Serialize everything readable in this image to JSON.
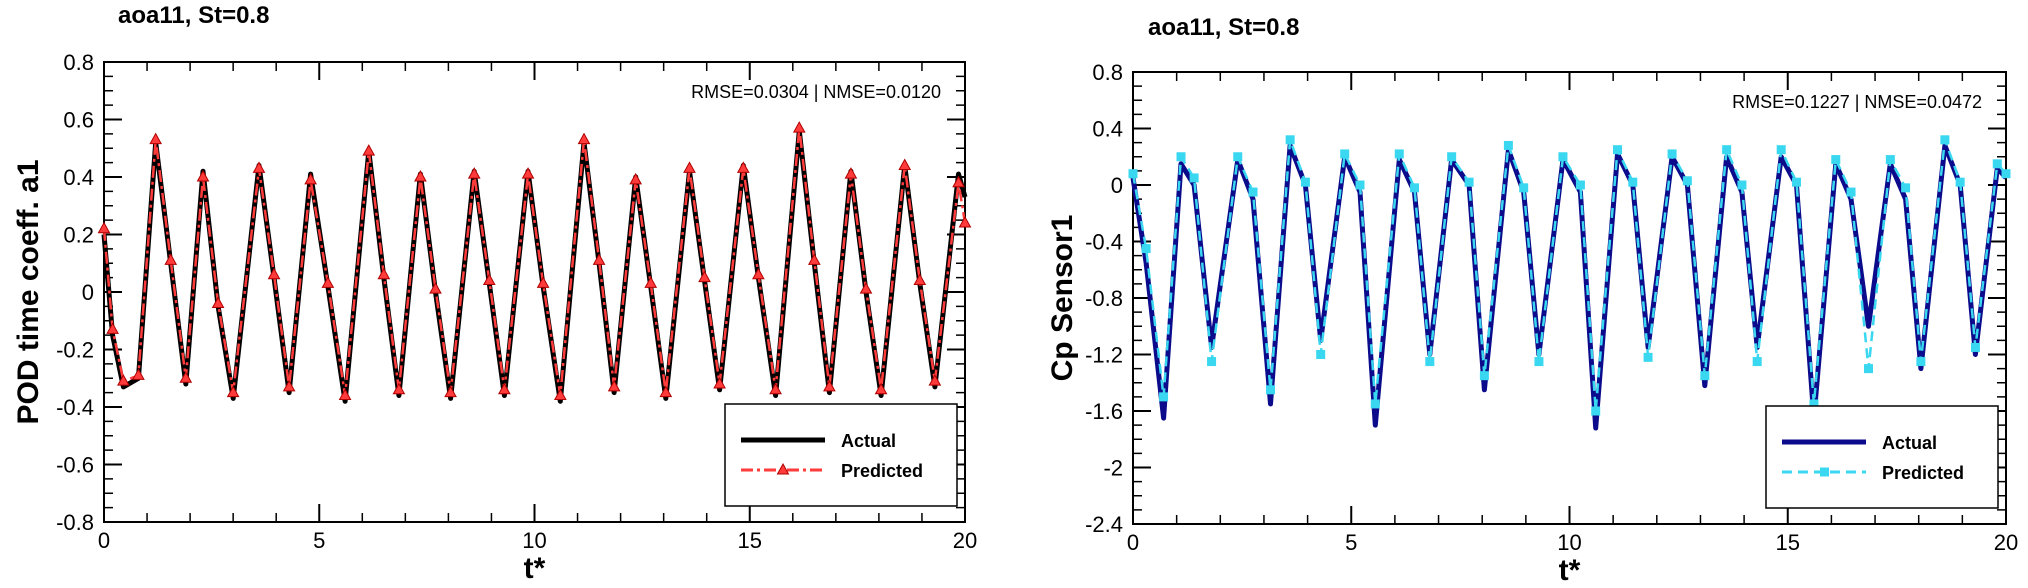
{
  "chart_data": [
    {
      "type": "line",
      "title": "aoa11, St=0.8",
      "xlabel": "t*",
      "ylabel": "POD time coeff. a1",
      "xlim": [
        0,
        20
      ],
      "ylim": [
        -0.8,
        0.8
      ],
      "xticks": [
        "0",
        "5",
        "10",
        "15",
        "20"
      ],
      "yticks": [
        "-0.8",
        "-0.6",
        "-0.4",
        "-0.2",
        "0",
        "0.2",
        "0.4",
        "0.6",
        "0.8"
      ],
      "annotation": "RMSE=0.0304 | NMSE=0.0120",
      "legend_position": "bottom-right",
      "series": [
        {
          "name": "Actual",
          "color": "#000000",
          "style": "solid",
          "x": [
            0,
            0.2,
            0.45,
            0.8,
            1.2,
            1.55,
            1.9,
            2.3,
            2.65,
            3.0,
            3.6,
            3.95,
            4.3,
            4.8,
            5.2,
            5.6,
            6.15,
            6.5,
            6.85,
            7.35,
            7.7,
            8.05,
            8.6,
            8.95,
            9.3,
            9.85,
            10.2,
            10.6,
            11.15,
            11.5,
            11.85,
            12.35,
            12.7,
            13.05,
            13.6,
            13.95,
            14.3,
            14.85,
            15.2,
            15.6,
            16.15,
            16.5,
            16.85,
            17.35,
            17.7,
            18.05,
            18.6,
            18.95,
            19.3,
            19.85,
            20
          ],
          "y": [
            0.2,
            -0.15,
            -0.33,
            -0.3,
            0.52,
            0.1,
            -0.32,
            0.42,
            -0.05,
            -0.37,
            0.44,
            0.05,
            -0.35,
            0.41,
            0.02,
            -0.38,
            0.49,
            0.05,
            -0.36,
            0.41,
            0.0,
            -0.37,
            0.42,
            0.03,
            -0.36,
            0.42,
            0.02,
            -0.38,
            0.52,
            0.1,
            -0.35,
            0.4,
            0.02,
            -0.37,
            0.42,
            0.04,
            -0.34,
            0.44,
            0.05,
            -0.36,
            0.56,
            0.1,
            -0.35,
            0.42,
            0.0,
            -0.36,
            0.44,
            0.03,
            -0.33,
            0.41,
            0.33
          ]
        },
        {
          "name": "Predicted",
          "color": "#ff3b3b",
          "style": "dashdot",
          "marker": "triangle",
          "x": [
            0,
            0.2,
            0.45,
            0.8,
            1.2,
            1.55,
            1.9,
            2.3,
            2.65,
            3.0,
            3.6,
            3.95,
            4.3,
            4.8,
            5.2,
            5.6,
            6.15,
            6.5,
            6.85,
            7.35,
            7.7,
            8.05,
            8.6,
            8.95,
            9.3,
            9.85,
            10.2,
            10.6,
            11.15,
            11.5,
            11.85,
            12.35,
            12.7,
            13.05,
            13.6,
            13.95,
            14.3,
            14.85,
            15.2,
            15.6,
            16.15,
            16.5,
            16.85,
            17.35,
            17.7,
            18.05,
            18.6,
            18.95,
            19.3,
            19.85,
            20
          ],
          "y": [
            0.22,
            -0.13,
            -0.31,
            -0.29,
            0.53,
            0.11,
            -0.3,
            0.4,
            -0.04,
            -0.35,
            0.43,
            0.06,
            -0.33,
            0.39,
            0.03,
            -0.36,
            0.49,
            0.06,
            -0.34,
            0.4,
            0.01,
            -0.35,
            0.41,
            0.04,
            -0.34,
            0.41,
            0.03,
            -0.36,
            0.53,
            0.11,
            -0.33,
            0.39,
            0.03,
            -0.35,
            0.43,
            0.05,
            -0.32,
            0.43,
            0.06,
            -0.34,
            0.57,
            0.11,
            -0.33,
            0.41,
            0.01,
            -0.34,
            0.44,
            0.04,
            -0.31,
            0.38,
            0.24
          ]
        }
      ]
    },
    {
      "type": "line",
      "title": "aoa11, St=0.8",
      "xlabel": "t*",
      "ylabel": "Cp Sensor1",
      "xlim": [
        0,
        20
      ],
      "ylim": [
        -2.4,
        0.8
      ],
      "xticks": [
        "0",
        "5",
        "10",
        "15",
        "20"
      ],
      "yticks": [
        "-2.4",
        "-2",
        "-1.6",
        "-1.2",
        "-0.8",
        "-0.4",
        "0",
        "0.4",
        "0.8"
      ],
      "annotation": "RMSE=0.1227 | NMSE=0.0472",
      "legend_position": "bottom-right",
      "series": [
        {
          "name": "Actual",
          "color": "#0b0b8c",
          "style": "solid",
          "x": [
            0,
            0.3,
            0.7,
            1.1,
            1.4,
            1.8,
            2.4,
            2.75,
            3.15,
            3.6,
            3.95,
            4.3,
            4.85,
            5.2,
            5.55,
            6.1,
            6.45,
            6.8,
            7.3,
            7.7,
            8.05,
            8.6,
            8.95,
            9.3,
            9.85,
            10.25,
            10.6,
            11.1,
            11.45,
            11.8,
            12.35,
            12.7,
            13.1,
            13.6,
            13.95,
            14.3,
            14.85,
            15.2,
            15.6,
            16.1,
            16.45,
            16.85,
            17.35,
            17.7,
            18.05,
            18.6,
            18.95,
            19.3,
            19.8,
            20
          ],
          "y": [
            0.05,
            -0.55,
            -1.65,
            0.15,
            0.0,
            -1.15,
            0.18,
            -0.1,
            -1.55,
            0.28,
            0.0,
            -1.1,
            0.2,
            -0.05,
            -1.7,
            0.18,
            -0.05,
            -1.2,
            0.18,
            0.0,
            -1.45,
            0.25,
            -0.05,
            -1.2,
            0.18,
            -0.05,
            -1.72,
            0.22,
            0.0,
            -1.15,
            0.2,
            0.0,
            -1.42,
            0.2,
            -0.05,
            -1.15,
            0.2,
            0.0,
            -1.65,
            0.15,
            -0.1,
            -1.0,
            0.15,
            -0.1,
            -1.3,
            0.28,
            0.0,
            -1.2,
            0.12,
            0.05
          ]
        },
        {
          "name": "Predicted",
          "color": "#39d8f0",
          "style": "dashed",
          "marker": "square",
          "x": [
            0,
            0.3,
            0.7,
            1.1,
            1.4,
            1.8,
            2.4,
            2.75,
            3.15,
            3.6,
            3.95,
            4.3,
            4.85,
            5.2,
            5.55,
            6.1,
            6.45,
            6.8,
            7.3,
            7.7,
            8.05,
            8.6,
            8.95,
            9.3,
            9.85,
            10.25,
            10.6,
            11.1,
            11.45,
            11.8,
            12.35,
            12.7,
            13.1,
            13.6,
            13.95,
            14.3,
            14.85,
            15.2,
            15.6,
            16.1,
            16.45,
            16.85,
            17.35,
            17.7,
            18.05,
            18.6,
            18.95,
            19.3,
            19.8,
            20
          ],
          "y": [
            0.08,
            -0.45,
            -1.5,
            0.2,
            0.05,
            -1.25,
            0.2,
            -0.05,
            -1.45,
            0.32,
            0.02,
            -1.2,
            0.22,
            0.0,
            -1.55,
            0.22,
            -0.02,
            -1.25,
            0.2,
            0.02,
            -1.35,
            0.28,
            -0.02,
            -1.25,
            0.2,
            0.0,
            -1.6,
            0.25,
            0.02,
            -1.22,
            0.22,
            0.03,
            -1.35,
            0.25,
            0.0,
            -1.25,
            0.25,
            0.02,
            -1.55,
            0.18,
            -0.05,
            -1.3,
            0.18,
            -0.02,
            -1.25,
            0.32,
            0.02,
            -1.15,
            0.15,
            0.08
          ]
        }
      ]
    }
  ]
}
